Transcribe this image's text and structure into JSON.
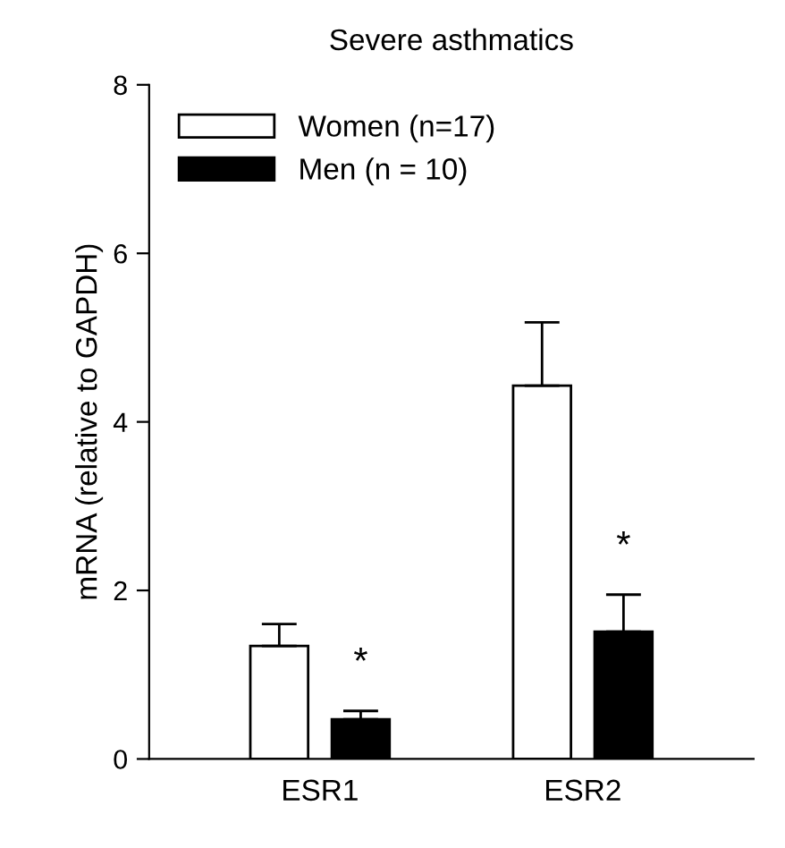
{
  "chart_data": {
    "type": "bar",
    "title": "Severe asthmatics",
    "ylabel": "mRNA (relative to GAPDH)",
    "categories": [
      "ESR1",
      "ESR2"
    ],
    "series": [
      {
        "name": "Women (n=17)",
        "color": "#ffffff",
        "values": [
          1.34,
          4.43
        ],
        "errors": [
          [
            1.34,
            1.6
          ],
          [
            4.43,
            5.18
          ]
        ]
      },
      {
        "name": "Men (n = 10)",
        "color": "#000000",
        "values": [
          0.47,
          1.51
        ],
        "errors": [
          [
            0.47,
            0.57
          ],
          [
            1.51,
            1.95
          ]
        ]
      }
    ],
    "annotations": [
      "*",
      "*"
    ],
    "ylim": [
      0,
      8
    ],
    "yticks": [
      0,
      2,
      4,
      6,
      8
    ],
    "legend": "top left",
    "grid": false
  }
}
